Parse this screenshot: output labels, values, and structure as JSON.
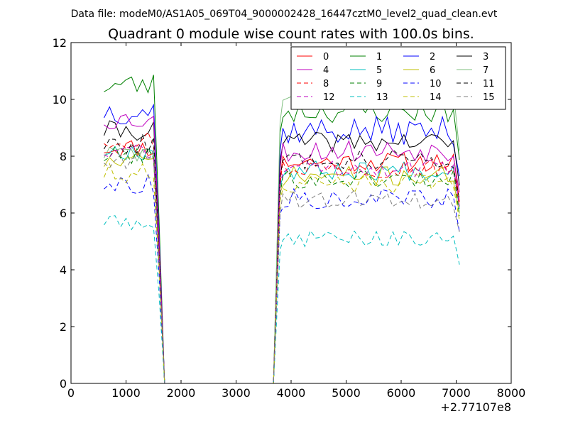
{
  "chart_data": {
    "type": "line",
    "suptitle": "Data file: modeM0/AS1A05_069T04_9000002428_16447cztM0_level2_quad_clean.evt",
    "title": "Quadrant 0 module wise count rates with 100.0s bins.",
    "xlabel": "",
    "ylabel": "",
    "x_offset_label": "+2.77107e8",
    "xlim": [
      0,
      8000
    ],
    "ylim": [
      0,
      12
    ],
    "xticks": [
      0,
      1000,
      2000,
      3000,
      4000,
      5000,
      6000,
      7000,
      8000
    ],
    "yticks": [
      0,
      2,
      4,
      6,
      8,
      10,
      12
    ],
    "grid": false,
    "legend_placement": "top-right",
    "legend_columns": 4,
    "series": [
      {
        "name": "0",
        "color": "#ff0000",
        "dash": "solid",
        "seed": 11,
        "pre": 8.3,
        "post": 7.8,
        "amp": 0.35
      },
      {
        "name": "1",
        "color": "#008000",
        "dash": "solid",
        "seed": 23,
        "pre": 10.5,
        "post": 9.6,
        "amp": 0.45
      },
      {
        "name": "2",
        "color": "#0000ff",
        "dash": "solid",
        "seed": 37,
        "pre": 9.6,
        "post": 8.9,
        "amp": 0.5
      },
      {
        "name": "3",
        "color": "#000000",
        "dash": "solid",
        "seed": 41,
        "pre": 8.9,
        "post": 8.5,
        "amp": 0.35
      },
      {
        "name": "4",
        "color": "#bf00bf",
        "dash": "solid",
        "seed": 53,
        "pre": 9.3,
        "post": 8.2,
        "amp": 0.4
      },
      {
        "name": "5",
        "color": "#00bfbf",
        "dash": "solid",
        "seed": 67,
        "pre": 8.2,
        "post": 7.5,
        "amp": 0.35
      },
      {
        "name": "6",
        "color": "#bfbf00",
        "dash": "solid",
        "seed": 71,
        "pre": 7.8,
        "post": 7.3,
        "amp": 0.35
      },
      {
        "name": "7",
        "color": "#7fbf7f",
        "dash": "solid",
        "seed": 83,
        "pre": 8.1,
        "post": 10.0,
        "amp": 0.35
      },
      {
        "name": "8",
        "color": "#ff0000",
        "dash": "dashed",
        "seed": 97,
        "pre": 8.6,
        "post": 7.6,
        "amp": 0.35
      },
      {
        "name": "9",
        "color": "#008000",
        "dash": "dashed",
        "seed": 101,
        "pre": 8.0,
        "post": 7.2,
        "amp": 0.35
      },
      {
        "name": "10",
        "color": "#0000ff",
        "dash": "dashed",
        "seed": 113,
        "pre": 7.0,
        "post": 6.5,
        "amp": 0.35
      },
      {
        "name": "11",
        "color": "#000000",
        "dash": "dashed",
        "seed": 127,
        "pre": 8.4,
        "post": 7.9,
        "amp": 0.35
      },
      {
        "name": "12",
        "color": "#bf00bf",
        "dash": "dashed",
        "seed": 131,
        "pre": 8.2,
        "post": 7.6,
        "amp": 0.35
      },
      {
        "name": "13",
        "color": "#00bfbf",
        "dash": "dashed",
        "seed": 149,
        "pre": 5.7,
        "post": 5.1,
        "amp": 0.3
      },
      {
        "name": "14",
        "color": "#bfbf00",
        "dash": "dashed",
        "seed": 151,
        "pre": 7.4,
        "post": 7.0,
        "amp": 0.35
      },
      {
        "name": "15",
        "color": "#7f7f7f",
        "dash": "dashed",
        "seed": 163,
        "pre": 7.9,
        "post": 6.5,
        "amp": 0.35
      }
    ],
    "x_sampling": {
      "pre_start": 600,
      "pre_end": 1550,
      "dropstart": 1600,
      "zero_start": 1700,
      "zero_end": 3680,
      "rise_end": 3800,
      "post_start": 3850,
      "post_end": 6980,
      "end_x": 7060,
      "step": 100
    }
  }
}
